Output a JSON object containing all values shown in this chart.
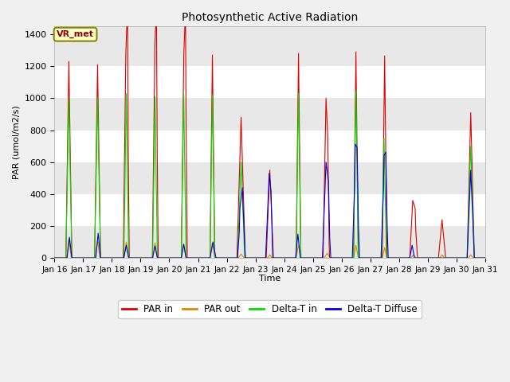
{
  "title": "Photosynthetic Active Radiation",
  "ylabel": "PAR (umol/m2/s)",
  "xlabel": "Time",
  "annotation": "VR_met",
  "ylim": [
    0,
    1450
  ],
  "xlim": [
    0,
    360
  ],
  "x_tick_labels": [
    "Jan 16",
    "Jan 17",
    "Jan 18",
    "Jan 19",
    "Jan 20",
    "Jan 21",
    "Jan 22",
    "Jan 23",
    "Jan 24",
    "Jan 25",
    "Jan 26",
    "Jan 27",
    "Jan 28",
    "Jan 29",
    "Jan 30",
    "Jan 31"
  ],
  "x_tick_positions": [
    0,
    24,
    48,
    72,
    96,
    120,
    144,
    168,
    192,
    216,
    240,
    264,
    288,
    312,
    336,
    360
  ],
  "colors": {
    "PAR_in": "#dd0000",
    "PAR_out": "#dd8800",
    "Delta_T_in": "#00dd00",
    "Delta_T_Diffuse": "#0000dd"
  },
  "legend_labels": [
    "PAR in",
    "PAR out",
    "Delta-T in",
    "Delta-T Diffuse"
  ],
  "plot_bg_light": "#e8e8e8",
  "plot_bg_dark": "#d0d0d0",
  "grid_color": "#ffffff",
  "annotation_bg": "#ffffcc",
  "annotation_border": "#888800",
  "fig_bg": "#f0f0f0"
}
